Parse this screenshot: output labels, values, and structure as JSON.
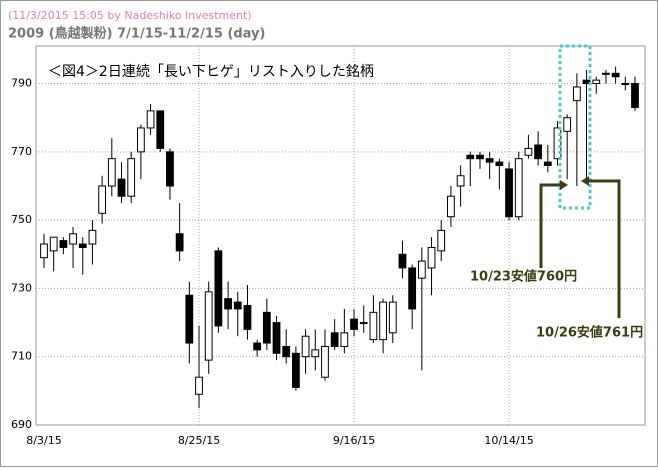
{
  "chart_data": {
    "type": "candlestick",
    "header": "(11/3/2015 15:05 by Nadeshiko Investment)",
    "subtitle": "2009 (鳥越製粉)  7/1/15-11/2/15 (day)",
    "title": "＜図4＞2日連続「長い下ヒゲ」リスト入りした銘柄",
    "annotations": [
      "10/23安値760円",
      "10/26安値761円"
    ],
    "categories": [
      "8/3/15",
      null,
      null,
      null,
      null,
      null,
      null,
      null,
      null,
      null,
      null,
      null,
      null,
      null,
      null,
      null,
      "8/25/15",
      null,
      null,
      null,
      null,
      null,
      null,
      null,
      null,
      null,
      null,
      null,
      null,
      null,
      null,
      null,
      "9/16/15",
      null,
      null,
      null,
      null,
      null,
      null,
      null,
      null,
      null,
      null,
      null,
      null,
      null,
      null,
      null,
      "10/14/15",
      null,
      null,
      null,
      null,
      null,
      null,
      null,
      null,
      null,
      null,
      null,
      null,
      null
    ],
    "open": [
      739,
      741,
      744,
      743,
      743,
      743,
      752,
      760,
      762,
      757,
      770,
      777,
      782,
      770,
      746,
      728,
      699,
      709,
      741,
      727,
      726,
      725,
      714,
      723,
      720,
      713,
      711,
      710,
      710,
      704,
      717,
      713,
      721,
      720,
      715,
      715,
      717,
      740,
      736,
      733,
      736,
      741,
      751,
      760,
      769,
      769,
      768,
      767,
      765,
      751,
      769,
      772,
      767,
      768,
      776,
      785,
      791,
      790,
      793,
      793,
      790,
      790
    ],
    "high": [
      746,
      745,
      745,
      748,
      745,
      750,
      763,
      774,
      767,
      770,
      778,
      784,
      782,
      771,
      755,
      732,
      719,
      732,
      742,
      732,
      729,
      731,
      715,
      727,
      722,
      718,
      713,
      718,
      718,
      718,
      721,
      724,
      724,
      725,
      728,
      727,
      728,
      744,
      737,
      742,
      745,
      750,
      760,
      766,
      770,
      770,
      770,
      768,
      767,
      770,
      775,
      776,
      772,
      779,
      781,
      793,
      794,
      792,
      794,
      795,
      792,
      792
    ],
    "low": [
      736,
      735,
      740,
      736,
      734,
      737,
      749,
      757,
      755,
      755,
      762,
      775,
      770,
      756,
      738,
      708,
      695,
      705,
      717,
      718,
      716,
      715,
      710,
      712,
      709,
      708,
      700,
      705,
      706,
      703,
      712,
      711,
      716,
      717,
      714,
      711,
      714,
      733,
      718,
      706,
      728,
      738,
      748,
      754,
      760,
      765,
      762,
      759,
      750,
      750,
      768,
      766,
      764,
      766,
      762,
      760,
      761,
      787,
      790,
      790,
      788,
      782
    ],
    "close": [
      743,
      745,
      742,
      746,
      742,
      747,
      760,
      768,
      757,
      768,
      777,
      782,
      771,
      760,
      741,
      714,
      704,
      729,
      719,
      724,
      724,
      718,
      712,
      714,
      711,
      710,
      701,
      716,
      712,
      713,
      713,
      717,
      718,
      720,
      723,
      726,
      726,
      736,
      724,
      738,
      742,
      747,
      757,
      763,
      768,
      768,
      767,
      766,
      751,
      768,
      771,
      768,
      766,
      777,
      780,
      789,
      790,
      791,
      793,
      792,
      790,
      783
    ],
    "up_color": "#ffffff",
    "down_color": "#000000",
    "ylim": [
      690,
      801
    ],
    "yticks": [
      690,
      710,
      730,
      750,
      770,
      790
    ],
    "grid": true
  }
}
